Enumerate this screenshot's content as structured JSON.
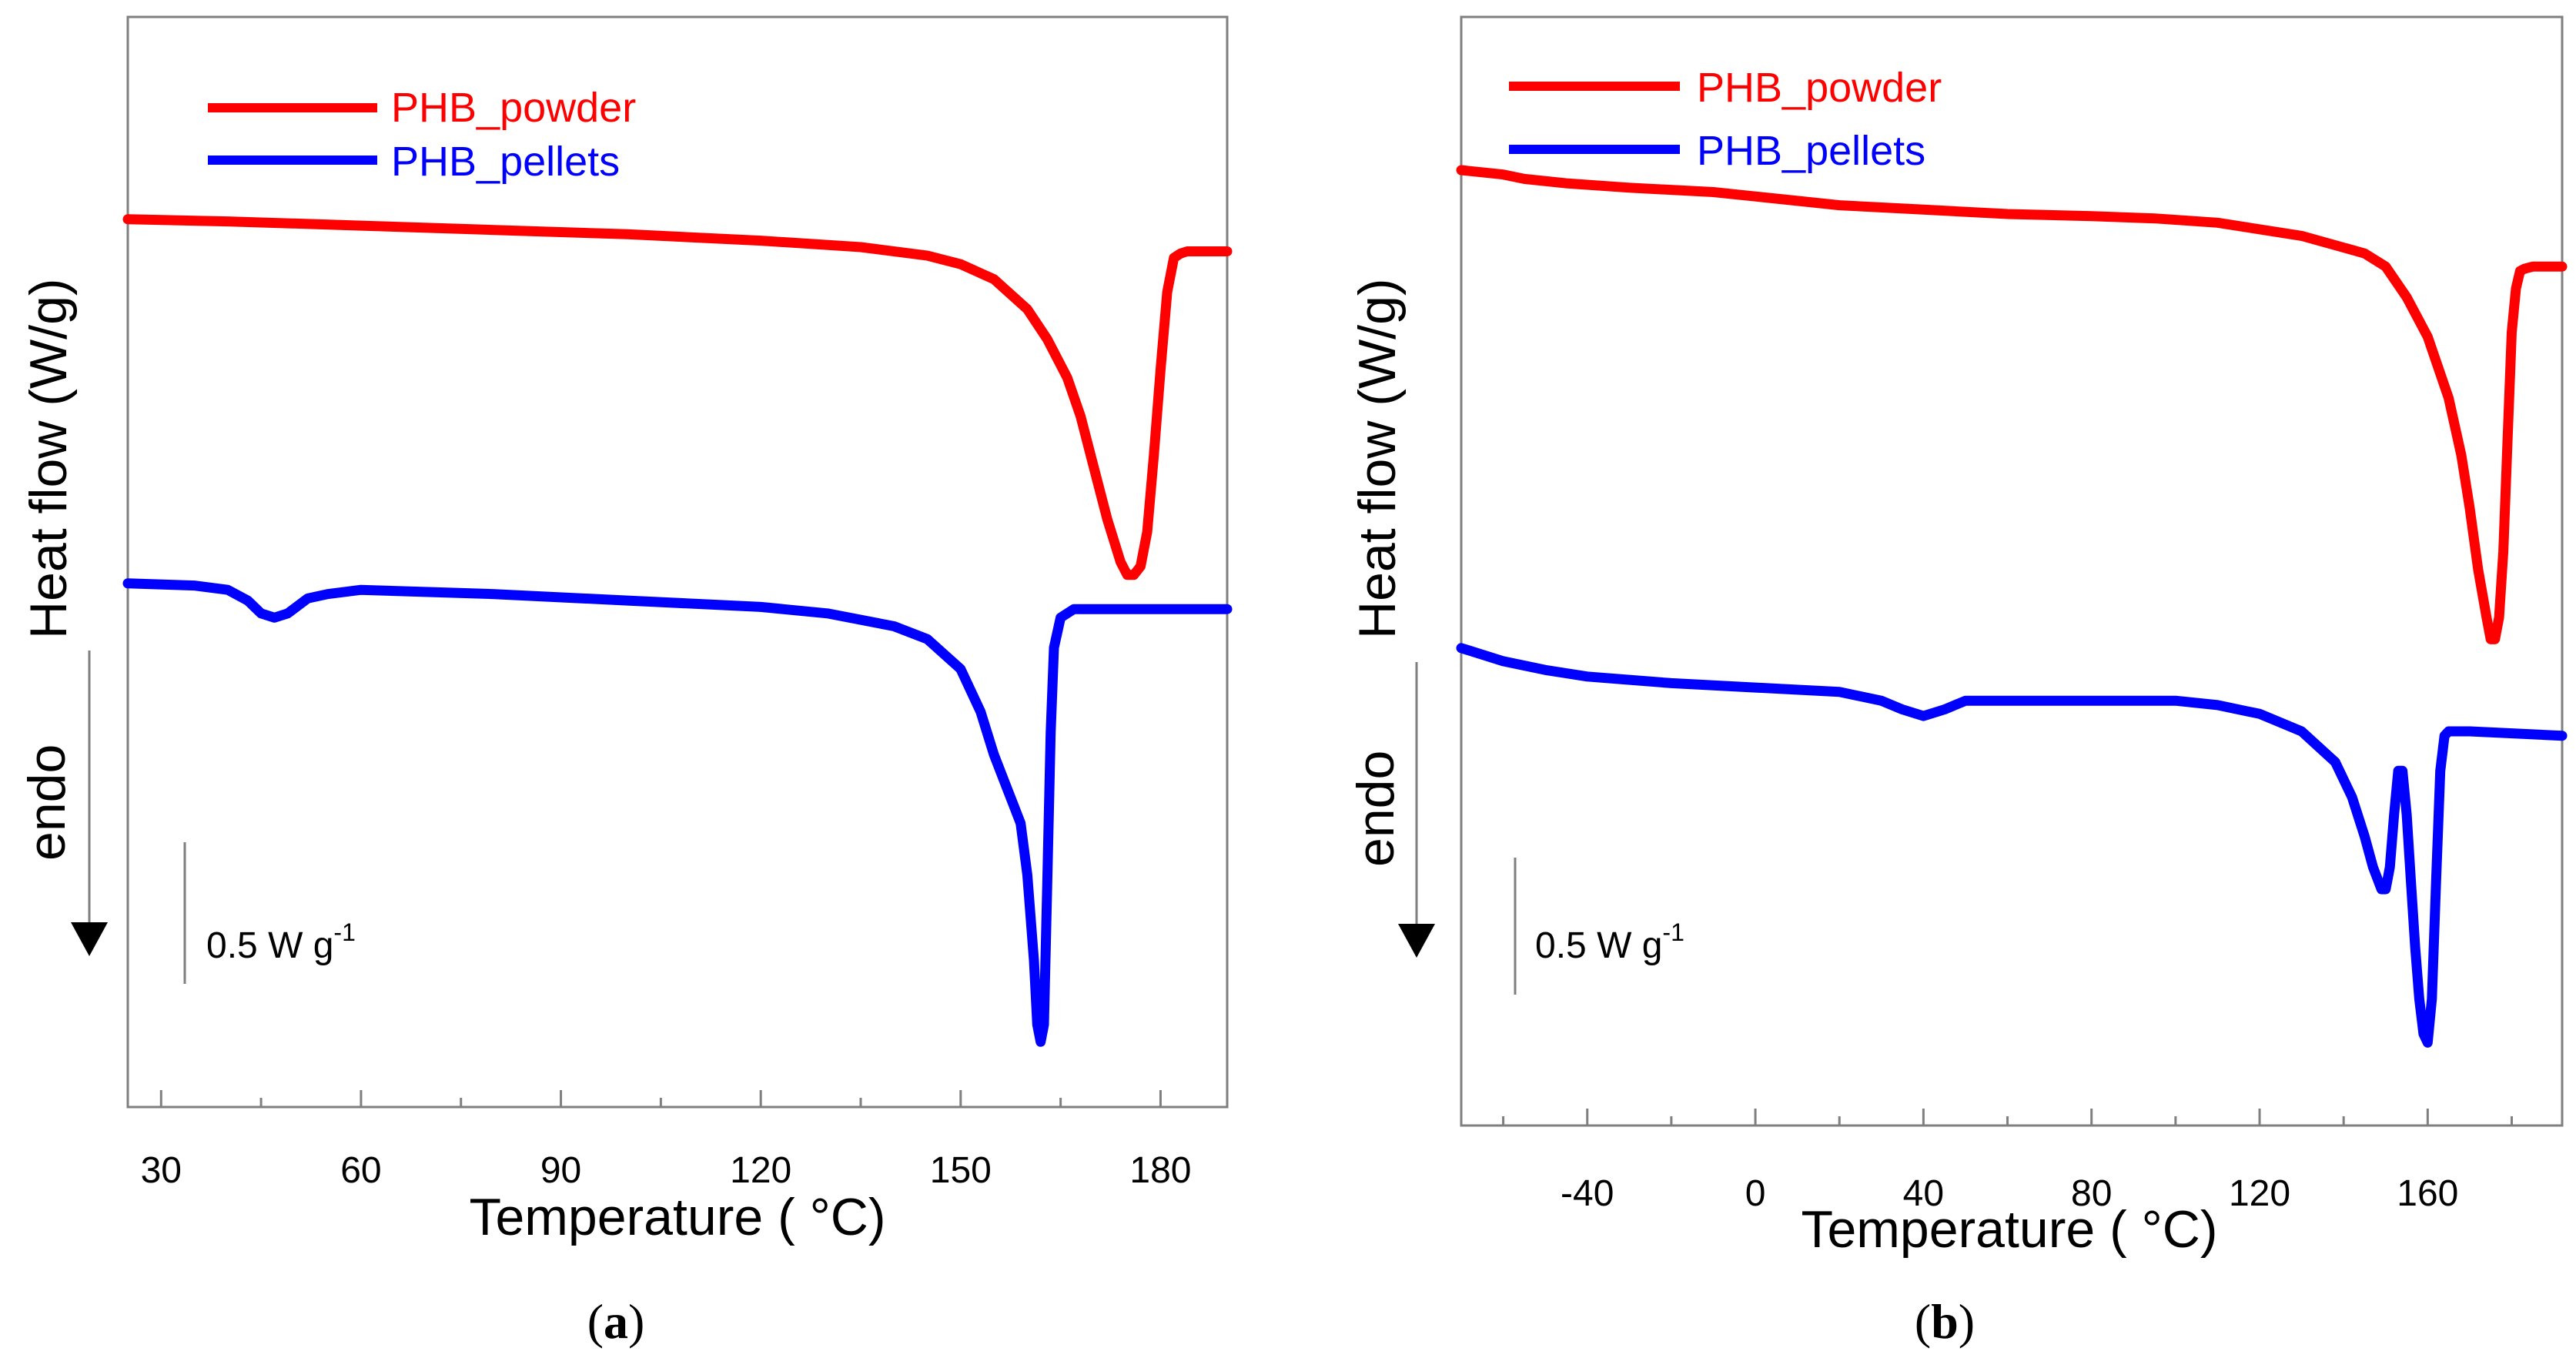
{
  "chart_data": [
    {
      "type": "line",
      "panel": "a",
      "xlabel": "Temperature ( °C)",
      "ylabel": "Heat flow (W/g)",
      "endo_label": "endo",
      "scale_bar_label": "0.5 W g",
      "scale_bar_superscript": "-1",
      "xlim": [
        25,
        190
      ],
      "x_ticks": [
        30,
        60,
        90,
        120,
        150,
        180
      ],
      "y_axis_values_shown": false,
      "legend_position": "top-left",
      "colors": {
        "PHB_powder": "#ff0000",
        "PHB_pellets": "#0000ff"
      },
      "series": [
        {
          "name": "PHB_powder",
          "x": [
            25,
            40,
            60,
            80,
            100,
            120,
            135,
            145,
            150,
            155,
            160,
            163,
            166,
            168,
            170,
            172,
            174,
            175,
            176,
            177,
            178,
            179,
            180,
            181,
            182,
            183,
            184,
            186,
            190
          ],
          "y": [
            0.95,
            0.945,
            0.935,
            0.925,
            0.915,
            0.9,
            0.885,
            0.865,
            0.845,
            0.81,
            0.74,
            0.67,
            0.58,
            0.49,
            0.37,
            0.25,
            0.15,
            0.12,
            0.12,
            0.14,
            0.22,
            0.4,
            0.6,
            0.78,
            0.86,
            0.87,
            0.875,
            0.875,
            0.875
          ]
        },
        {
          "name": "PHB_pellets",
          "x": [
            25,
            35,
            40,
            43,
            45,
            47,
            49,
            52,
            55,
            60,
            80,
            100,
            120,
            130,
            140,
            145,
            150,
            153,
            155,
            157,
            158,
            159,
            160,
            161,
            161.5,
            162,
            162.5,
            163,
            163.5,
            164,
            165,
            167,
            170,
            180,
            190
          ],
          "y": [
            0.1,
            0.095,
            0.085,
            0.06,
            0.03,
            0.02,
            0.03,
            0.065,
            0.075,
            0.085,
            0.075,
            0.06,
            0.045,
            0.03,
            0.0,
            -0.03,
            -0.1,
            -0.2,
            -0.3,
            -0.38,
            -0.42,
            -0.46,
            -0.58,
            -0.78,
            -0.93,
            -0.97,
            -0.93,
            -0.6,
            -0.25,
            -0.05,
            0.02,
            0.04,
            0.04,
            0.04,
            0.04
          ]
        }
      ]
    },
    {
      "type": "line",
      "panel": "b",
      "xlabel": "Temperature ( °C)",
      "ylabel": "Heat flow (W/g)",
      "endo_label": "endo",
      "scale_bar_label": "0.5 W g",
      "scale_bar_superscript": "-1",
      "xlim": [
        -70,
        192
      ],
      "x_ticks": [
        -40,
        0,
        40,
        80,
        120,
        160
      ],
      "y_axis_values_shown": false,
      "legend_position": "top-left",
      "colors": {
        "PHB_powder": "#ff0000",
        "PHB_pellets": "#0000ff"
      },
      "series": [
        {
          "name": "PHB_powder",
          "x": [
            -70,
            -60,
            -55,
            -45,
            -30,
            -10,
            0,
            10,
            20,
            40,
            60,
            80,
            95,
            110,
            130,
            145,
            150,
            155,
            160,
            165,
            168,
            170,
            172,
            174,
            175,
            176,
            177,
            178,
            179,
            180,
            181,
            182,
            183,
            185,
            192
          ],
          "y": [
            1.07,
            1.06,
            1.05,
            1.04,
            1.03,
            1.02,
            1.01,
            1.0,
            0.99,
            0.98,
            0.97,
            0.965,
            0.96,
            0.95,
            0.92,
            0.88,
            0.85,
            0.78,
            0.69,
            0.55,
            0.42,
            0.3,
            0.16,
            0.05,
            0.0,
            0.0,
            0.05,
            0.2,
            0.45,
            0.7,
            0.8,
            0.84,
            0.845,
            0.85,
            0.85
          ]
        },
        {
          "name": "PHB_pellets",
          "x": [
            -70,
            -60,
            -50,
            -40,
            -20,
            0,
            20,
            30,
            35,
            40,
            45,
            50,
            60,
            80,
            100,
            110,
            120,
            130,
            138,
            142,
            145,
            147,
            149,
            150,
            151,
            152,
            153,
            154,
            155,
            156,
            157,
            158,
            159,
            160,
            161,
            162,
            163,
            164,
            165,
            170,
            192
          ],
          "y": [
            -0.02,
            -0.05,
            -0.07,
            -0.085,
            -0.1,
            -0.11,
            -0.12,
            -0.14,
            -0.16,
            -0.175,
            -0.16,
            -0.14,
            -0.14,
            -0.14,
            -0.14,
            -0.15,
            -0.17,
            -0.21,
            -0.28,
            -0.36,
            -0.45,
            -0.52,
            -0.57,
            -0.57,
            -0.52,
            -0.4,
            -0.3,
            -0.3,
            -0.4,
            -0.55,
            -0.7,
            -0.82,
            -0.9,
            -0.92,
            -0.82,
            -0.55,
            -0.3,
            -0.22,
            -0.21,
            -0.21,
            -0.22
          ]
        }
      ]
    }
  ],
  "panel_labels": [
    "a",
    "b"
  ]
}
